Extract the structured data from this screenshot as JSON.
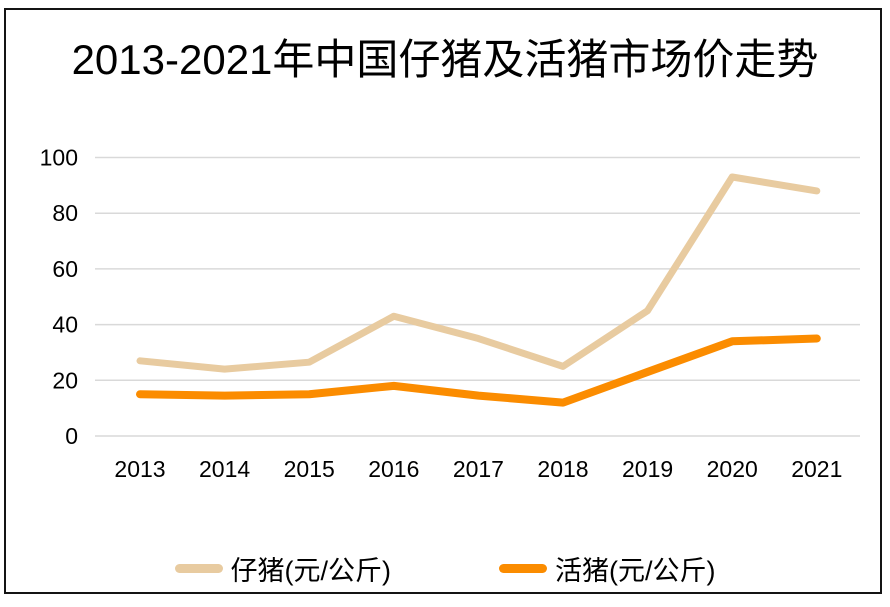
{
  "window": {
    "background_color": "#FFFFFF",
    "frame_border_color": "#141414"
  },
  "chart_data": {
    "type": "line",
    "title": "2013-2021年中国仔猪及活猪市场价走势",
    "categories": [
      "2013",
      "2014",
      "2015",
      "2016",
      "2017",
      "2018",
      "2019",
      "2020",
      "2021"
    ],
    "series": [
      {
        "name": "仔猪(元/公斤)",
        "color": "#E8CBA0",
        "values": [
          27,
          24,
          26.5,
          43,
          35,
          25,
          45,
          93,
          88
        ]
      },
      {
        "name": "活猪(元/公斤)",
        "color": "#FB8C00",
        "values": [
          15,
          14.5,
          15,
          18,
          14.5,
          12,
          23,
          34,
          35
        ]
      }
    ],
    "xlabel": "",
    "ylabel": "",
    "ylim": [
      0,
      100
    ],
    "yticks": [
      0,
      20,
      40,
      60,
      80,
      100
    ],
    "grid": true,
    "gridline_color": "#D9D9D9",
    "text_color": "#000000",
    "legend_position": "bottom"
  }
}
